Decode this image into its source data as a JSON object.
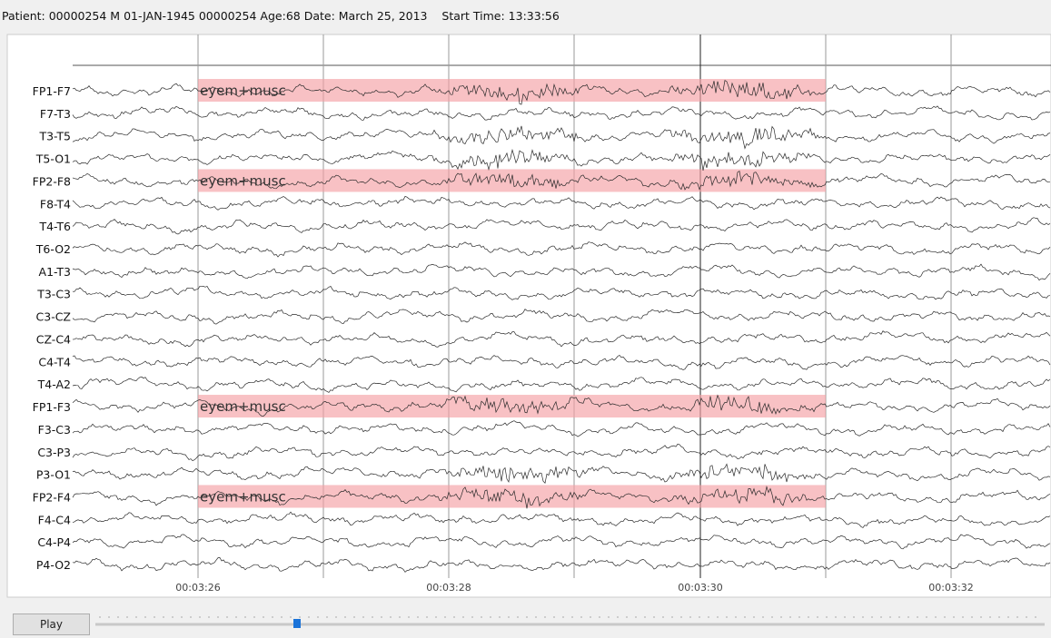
{
  "header": {
    "text": "Patient: 00000254 M 01-JAN-1945 00000254 Age:68 Date: March 25, 2013    Start Time: 13:33:56"
  },
  "channels": [
    "FP1-F7",
    "F7-T3",
    "T3-T5",
    "T5-O1",
    "FP2-F8",
    "F8-T4",
    "T4-T6",
    "T6-O2",
    "A1-T3",
    "T3-C3",
    "C3-CZ",
    "CZ-C4",
    "C4-T4",
    "T4-A2",
    "FP1-F3",
    "F3-C3",
    "C3-P3",
    "P3-O1",
    "FP2-F4",
    "F4-C4",
    "C4-P4",
    "P4-O2"
  ],
  "annotations": [
    {
      "channel": "FP1-F7",
      "label": "eyem+musc"
    },
    {
      "channel": "FP2-F8",
      "label": "eyem+musc"
    },
    {
      "channel": "FP1-F3",
      "label": "eyem+musc"
    },
    {
      "channel": "FP2-F4",
      "label": "eyem+musc"
    }
  ],
  "time_labels": [
    "00:03:26",
    "00:03:28",
    "00:03:30",
    "00:03:32"
  ],
  "controls": {
    "play": "Play"
  }
}
